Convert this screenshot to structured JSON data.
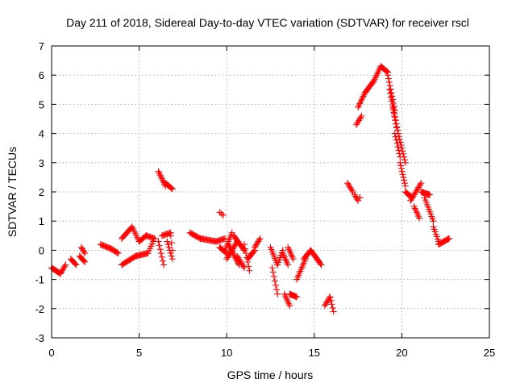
{
  "chart_data": {
    "type": "scatter",
    "title": "Day 211 of 2018, Sidereal Day-to-day VTEC variation (SDTVAR) for receiver rscl",
    "xlabel": "GPS time / hours",
    "ylabel": "SDTVAR / TECUs",
    "xlim": [
      0,
      25
    ],
    "ylim": [
      -3,
      7
    ],
    "xticks": [
      "0",
      "5",
      "10",
      "15",
      "20",
      "25"
    ],
    "yticks": [
      "-3",
      "-2",
      "-1",
      "0",
      "1",
      "2",
      "3",
      "4",
      "5",
      "6",
      "7"
    ],
    "grid": true,
    "marker": "+",
    "color": "#ff0000",
    "series": [
      {
        "name": "SDTVAR",
        "segments": [
          [
            0.0,
            -0.6,
            0.5,
            -0.8,
            0.05
          ],
          [
            0.5,
            -0.8,
            0.8,
            -0.5,
            0.05
          ],
          [
            1.1,
            -0.3,
            1.4,
            -0.5,
            0.05
          ],
          [
            1.6,
            -0.2,
            1.9,
            -0.4,
            0.05
          ],
          [
            1.7,
            0.1,
            1.9,
            -0.1,
            0.05
          ],
          [
            2.8,
            0.2,
            3.4,
            0.05,
            0.06
          ],
          [
            3.4,
            0.05,
            3.8,
            -0.1,
            0.06
          ],
          [
            4.0,
            -0.5,
            4.8,
            -0.2,
            0.06
          ],
          [
            4.8,
            -0.2,
            5.5,
            -0.1,
            0.06
          ],
          [
            5.5,
            -0.1,
            5.8,
            0.3,
            0.06
          ],
          [
            4.0,
            0.4,
            4.6,
            0.8,
            0.06
          ],
          [
            4.6,
            0.8,
            5.0,
            0.3,
            0.06
          ],
          [
            5.0,
            0.3,
            5.4,
            0.5,
            0.06
          ],
          [
            5.4,
            0.5,
            5.9,
            0.4,
            0.06
          ],
          [
            6.1,
            2.7,
            6.5,
            2.2,
            0.05
          ],
          [
            6.5,
            2.3,
            6.9,
            2.1,
            0.05
          ],
          [
            6.1,
            0.3,
            6.4,
            -0.5,
            0.05
          ],
          [
            6.3,
            0.5,
            6.8,
            0.6,
            0.06
          ],
          [
            6.6,
            0.3,
            6.9,
            -0.3,
            0.05
          ],
          [
            6.8,
            0.5,
            6.9,
            0.0,
            0.05
          ],
          [
            7.9,
            0.6,
            8.5,
            0.4,
            0.06
          ],
          [
            8.5,
            0.4,
            9.4,
            0.3,
            0.06
          ],
          [
            9.4,
            0.3,
            9.9,
            0.4,
            0.06
          ],
          [
            9.6,
            1.3,
            9.8,
            1.2,
            0.1
          ],
          [
            9.6,
            0.1,
            10.0,
            -0.1,
            0.05
          ],
          [
            9.9,
            0.0,
            10.3,
            0.6,
            0.05
          ],
          [
            10.0,
            -0.3,
            10.6,
            0.3,
            0.05
          ],
          [
            10.1,
            0.2,
            10.7,
            -0.5,
            0.05
          ],
          [
            10.4,
            0.5,
            11.0,
            0.0,
            0.05
          ],
          [
            10.6,
            -0.2,
            11.0,
            -0.6,
            0.05
          ],
          [
            11.0,
            0.2,
            11.3,
            -0.7,
            0.05
          ],
          [
            11.2,
            -0.3,
            11.6,
            0.0,
            0.05
          ],
          [
            11.6,
            0.1,
            11.9,
            0.4,
            0.05
          ],
          [
            12.5,
            0.1,
            12.9,
            -0.5,
            0.05
          ],
          [
            12.6,
            -0.6,
            12.9,
            -1.5,
            0.05
          ],
          [
            12.9,
            -0.5,
            13.2,
            0.0,
            0.05
          ],
          [
            13.2,
            -0.1,
            13.5,
            -0.5,
            0.05
          ],
          [
            13.5,
            0.1,
            13.8,
            -0.3,
            0.05
          ],
          [
            13.3,
            -1.5,
            13.6,
            -1.9,
            0.05
          ],
          [
            13.6,
            -1.5,
            14.0,
            -1.6,
            0.05
          ],
          [
            14.0,
            -1.0,
            14.5,
            -0.3,
            0.05
          ],
          [
            14.4,
            -0.3,
            14.8,
            0.0,
            0.05
          ],
          [
            14.8,
            0.0,
            15.4,
            -0.5,
            0.05
          ],
          [
            15.6,
            -1.9,
            15.9,
            -1.6,
            0.05
          ],
          [
            15.9,
            -1.6,
            16.1,
            -2.1,
            0.05
          ],
          [
            16.9,
            2.3,
            17.2,
            2.0,
            0.05
          ],
          [
            17.3,
            1.9,
            17.5,
            1.7,
            0.05
          ],
          [
            17.5,
            4.9,
            17.9,
            5.4,
            0.05
          ],
          [
            17.9,
            5.4,
            18.4,
            5.8,
            0.05
          ],
          [
            18.4,
            5.8,
            18.8,
            6.3,
            0.05
          ],
          [
            18.8,
            6.3,
            19.2,
            6.1,
            0.05
          ],
          [
            17.6,
            1.8,
            17.6,
            1.8,
            1
          ],
          [
            17.4,
            4.3,
            17.7,
            4.6,
            0.05
          ],
          [
            19.2,
            6.0,
            19.6,
            4.8,
            0.04
          ],
          [
            19.5,
            4.9,
            19.8,
            4.0,
            0.04
          ],
          [
            19.8,
            4.0,
            20.2,
            3.0,
            0.04
          ],
          [
            19.3,
            5.5,
            19.7,
            4.2,
            0.04
          ],
          [
            19.6,
            4.0,
            19.9,
            3.2,
            0.04
          ],
          [
            19.9,
            3.0,
            20.2,
            2.2,
            0.04
          ],
          [
            20.2,
            2.0,
            20.6,
            1.8,
            0.05
          ],
          [
            20.5,
            1.7,
            21.1,
            2.3,
            0.05
          ],
          [
            20.7,
            1.5,
            21.0,
            1.1,
            0.05
          ],
          [
            21.1,
            2.0,
            21.6,
            1.9,
            0.05
          ],
          [
            21.3,
            1.8,
            21.8,
            1.0,
            0.05
          ],
          [
            21.8,
            0.8,
            22.1,
            0.3,
            0.05
          ],
          [
            22.1,
            0.2,
            22.7,
            0.4,
            0.05
          ]
        ]
      }
    ]
  }
}
